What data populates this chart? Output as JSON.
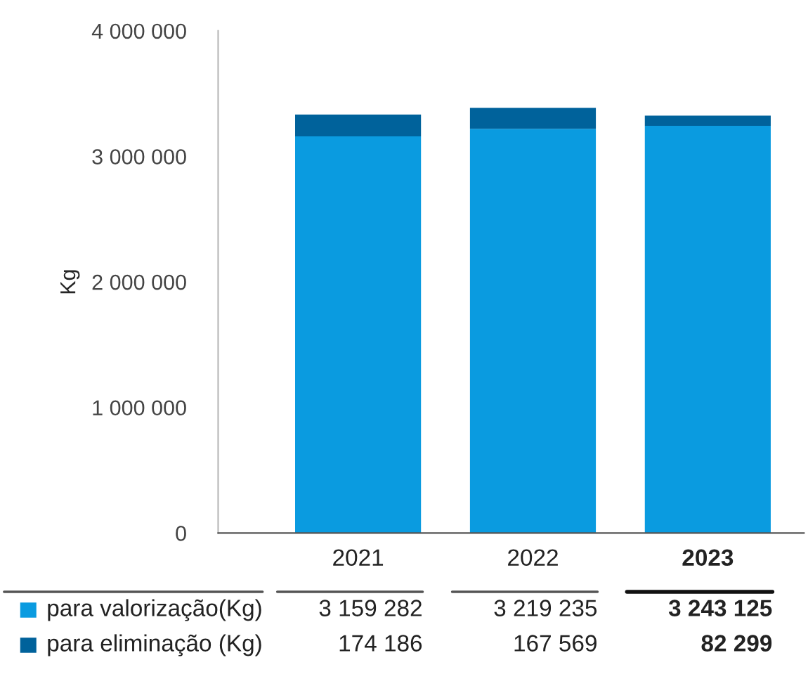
{
  "chart_data": {
    "type": "bar",
    "stacked": true,
    "ylabel": "Kg",
    "categories": [
      "2021",
      "2022",
      "2023"
    ],
    "series": [
      {
        "name": "para valorização(Kg)",
        "color": "#0a9be0",
        "values": [
          3159282,
          3219235,
          3243125
        ],
        "value_labels": [
          "3 159 282",
          "3 219 235",
          "3 243 125"
        ]
      },
      {
        "name": "para eliminação (Kg)",
        "color": "#00629b",
        "values": [
          174186,
          167569,
          82299
        ],
        "value_labels": [
          "174 186",
          "167 569",
          "82 299"
        ]
      }
    ],
    "ylim": [
      0,
      4000000
    ],
    "yticks": [
      0,
      {
        "value": 1000000,
        "label": "1 000 000"
      },
      {
        "value": 2000000,
        "label": "2 000 000"
      },
      {
        "value": 3000000,
        "label": "3 000 000"
      },
      {
        "value": 4000000,
        "label": "4 000 000"
      }
    ],
    "grid": false,
    "legend": "bottom left"
  }
}
